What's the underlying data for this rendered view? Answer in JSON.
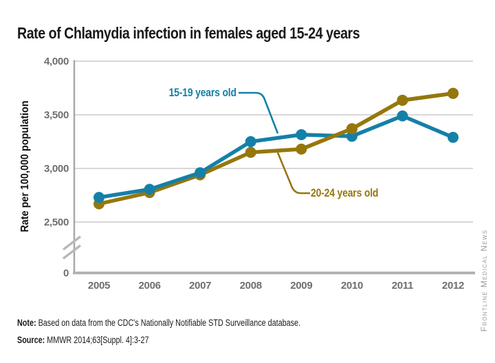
{
  "title": "Rate of Chlamydia infection in females aged 15-24 years",
  "watermark": "Frontline Medical News",
  "footer": {
    "note_label": "Note:",
    "note_text": " Based on data from the CDC's Nationally Notifiable STD Surveillance database.",
    "source_label": "Source:",
    "source_text": " MMWR 2014;63[Suppl. 4]:3-27"
  },
  "chart_data": {
    "type": "line",
    "title": "Rate of Chlamydia infection in females aged 15-24 years",
    "xlabel": "",
    "ylabel": "Rate per 100,000 population",
    "x": [
      2005,
      2006,
      2007,
      2008,
      2009,
      2010,
      2011,
      2012
    ],
    "series": [
      {
        "name": "15-19 years old",
        "color": "#1480A8",
        "values": [
          2730,
          2805,
          2960,
          3250,
          3315,
          3300,
          3490,
          3290
        ]
      },
      {
        "name": "20-24 years old",
        "color": "#95770C",
        "values": [
          2670,
          2775,
          2940,
          3150,
          3180,
          3370,
          3635,
          3700
        ]
      }
    ],
    "yticks": [
      {
        "value": 4000,
        "label": "4,000"
      },
      {
        "value": 3500,
        "label": "3,500"
      },
      {
        "value": 3000,
        "label": "3,000"
      },
      {
        "value": 2500,
        "label": "2,500"
      },
      {
        "value": 0,
        "label": "0"
      }
    ],
    "ylim_display": [
      2500,
      4000
    ],
    "axis_break": true,
    "grid": true,
    "legend_position": "inline-annotations",
    "colors": {
      "grid": "#cccccc",
      "axis_bottom": "#b3b3b3",
      "axis_left": "#a8a8a8",
      "break_marks": "#b9b9b9",
      "tick_text": "#6e6e6e"
    }
  }
}
